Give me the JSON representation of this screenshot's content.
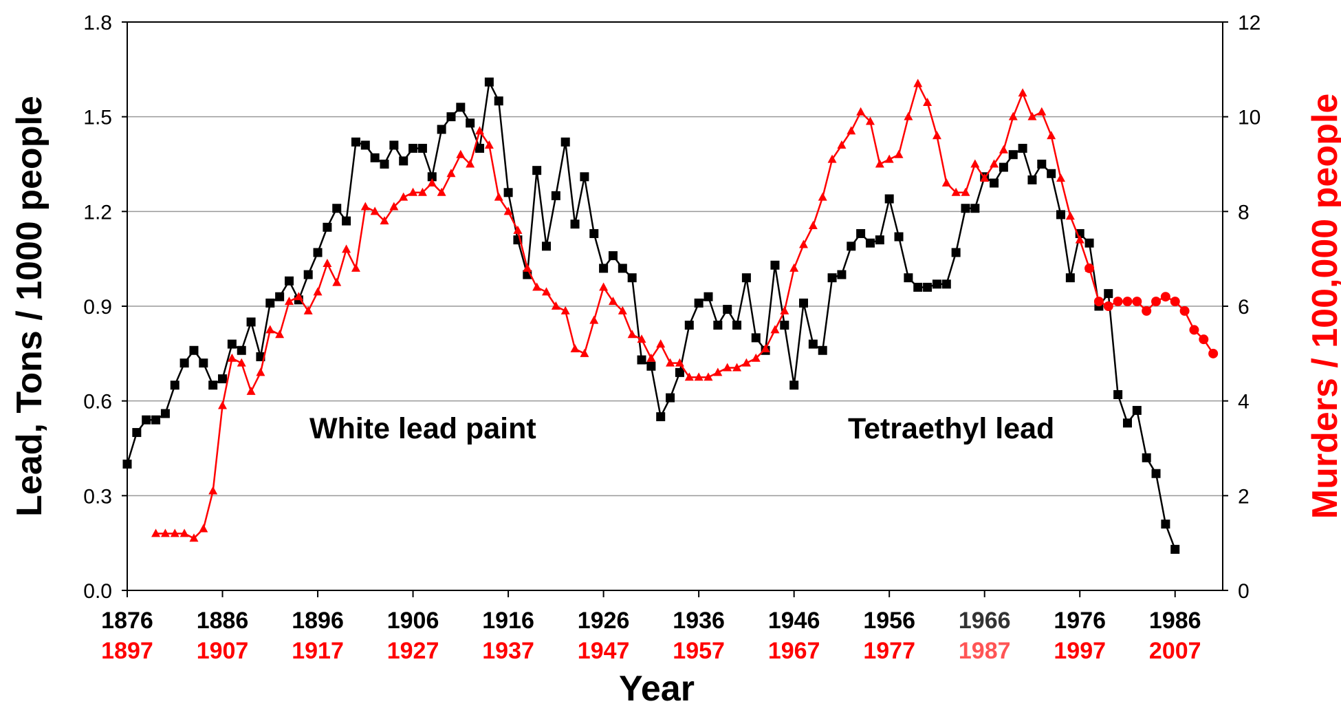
{
  "chart_data": {
    "type": "line",
    "xlabel": "Year",
    "ylabel_left": "Lead, Tons / 1000 people",
    "ylabel_right": "Murders / 100,000 people",
    "x_range": [
      1876,
      1991
    ],
    "ylim_left": [
      0.0,
      1.8
    ],
    "ylim_right": [
      0,
      12
    ],
    "yticks_left": [
      "0.0",
      "0.3",
      "0.6",
      "0.9",
      "1.2",
      "1.5",
      "1.8"
    ],
    "yticks_right": [
      "0",
      "2",
      "4",
      "6",
      "8",
      "10",
      "12"
    ],
    "xticks_primary": [
      "1876",
      "1886",
      "1896",
      "1906",
      "1916",
      "1926",
      "1936",
      "1946",
      "1956",
      "1966",
      "1976",
      "1986"
    ],
    "xticks_secondary": [
      "1897",
      "1907",
      "1917",
      "1927",
      "1937",
      "1947",
      "1957",
      "1967",
      "1977",
      "1987",
      "1997",
      "2007"
    ],
    "grid": true,
    "annotations": [
      {
        "text": "White lead paint",
        "x": 1903,
        "y": 0.5
      },
      {
        "text": "Tetraethyl lead",
        "x": 1964,
        "y": 0.5
      }
    ],
    "colors": {
      "lead": "#000000",
      "murders": "#ff0000",
      "tick_secondary": "#ff0000",
      "tick_secondary_special": "#ff5555",
      "tick_primary_special": "#333333",
      "grid": "#999999"
    },
    "series": [
      {
        "axis": "left",
        "marker": "square",
        "x": [
          1876,
          1877,
          1878,
          1879,
          1880,
          1881,
          1882,
          1883,
          1884,
          1885,
          1886,
          1887,
          1888,
          1889,
          1890,
          1891,
          1892,
          1893,
          1894,
          1895,
          1896,
          1897,
          1898,
          1899,
          1900,
          1901,
          1902,
          1903,
          1904,
          1905,
          1906,
          1907,
          1908,
          1909,
          1910,
          1911,
          1912,
          1913,
          1914,
          1915,
          1916,
          1917,
          1918,
          1919,
          1920,
          1921,
          1922,
          1923,
          1924,
          1925,
          1926,
          1927,
          1928,
          1929,
          1930,
          1931,
          1932,
          1933,
          1934,
          1935,
          1936,
          1937,
          1938,
          1939,
          1940,
          1941,
          1942,
          1943,
          1944,
          1945,
          1946,
          1947,
          1948,
          1949,
          1950,
          1951,
          1952,
          1953,
          1954,
          1955,
          1956,
          1957,
          1958,
          1959,
          1960,
          1961,
          1962,
          1963,
          1964,
          1965,
          1966,
          1967,
          1968,
          1969,
          1970,
          1971,
          1972,
          1973,
          1974,
          1975,
          1976,
          1977,
          1978,
          1979,
          1980,
          1981,
          1982,
          1983,
          1984,
          1985,
          1986
        ],
        "values": [
          0.4,
          0.5,
          0.54,
          0.54,
          0.56,
          0.65,
          0.72,
          0.76,
          0.72,
          0.65,
          0.67,
          0.78,
          0.76,
          0.85,
          0.74,
          0.91,
          0.93,
          0.98,
          0.92,
          1.0,
          1.07,
          1.15,
          1.21,
          1.17,
          1.42,
          1.41,
          1.37,
          1.35,
          1.41,
          1.36,
          1.4,
          1.4,
          1.31,
          1.46,
          1.5,
          1.53,
          1.48,
          1.4,
          1.61,
          1.55,
          1.26,
          1.11,
          1.0,
          1.33,
          1.09,
          1.25,
          1.42,
          1.16,
          1.31,
          1.13,
          1.02,
          1.06,
          1.02,
          0.99,
          0.73,
          0.71,
          0.55,
          0.61,
          0.69,
          0.84,
          0.91,
          0.93,
          0.84,
          0.89,
          0.84,
          0.99,
          0.8,
          0.76,
          1.03,
          0.84,
          0.65,
          0.91,
          0.78,
          0.76,
          0.99,
          1.0,
          1.09,
          1.13,
          1.1,
          1.11,
          1.24,
          1.12,
          0.99,
          0.96,
          0.96,
          0.97,
          0.97,
          1.07,
          1.21,
          1.21,
          1.31,
          1.29,
          1.34,
          1.38,
          1.4,
          1.3,
          1.35,
          1.32,
          1.19,
          0.99,
          1.13,
          1.1,
          0.9,
          0.94,
          0.62,
          0.53,
          0.57,
          0.42,
          0.37,
          0.21,
          0.13
        ]
      },
      {
        "axis": "right",
        "marker": "triangle",
        "x": [
          1879,
          1880,
          1881,
          1882,
          1883,
          1884,
          1885,
          1886,
          1887,
          1888,
          1889,
          1890,
          1891,
          1892,
          1893,
          1894,
          1895,
          1896,
          1897,
          1898,
          1899,
          1900,
          1901,
          1902,
          1903,
          1904,
          1905,
          1906,
          1907,
          1908,
          1909,
          1910,
          1911,
          1912,
          1913,
          1914,
          1915,
          1916,
          1917,
          1918,
          1919,
          1920,
          1921,
          1922,
          1923,
          1924,
          1925,
          1926,
          1927,
          1928,
          1929,
          1930,
          1931,
          1932,
          1933,
          1934,
          1935,
          1936,
          1937,
          1938,
          1939,
          1940,
          1941,
          1942,
          1943,
          1944,
          1945,
          1946,
          1947,
          1948,
          1949,
          1950,
          1951,
          1952,
          1953,
          1954,
          1955,
          1956,
          1957,
          1958,
          1959,
          1960,
          1961,
          1962,
          1963,
          1964,
          1965,
          1966,
          1967,
          1968,
          1969,
          1970,
          1971,
          1972,
          1973,
          1974,
          1975,
          1976,
          1977
        ],
        "values": [
          1.2,
          1.2,
          1.2,
          1.2,
          1.1,
          1.3,
          2.1,
          3.9,
          4.9,
          4.8,
          4.2,
          4.6,
          5.5,
          5.4,
          6.1,
          6.2,
          5.9,
          6.3,
          6.9,
          6.5,
          7.2,
          6.8,
          8.1,
          8.0,
          7.8,
          8.1,
          8.3,
          8.4,
          8.4,
          8.6,
          8.4,
          8.8,
          9.2,
          9.0,
          9.7,
          9.4,
          8.3,
          8.0,
          7.6,
          6.8,
          6.4,
          6.3,
          6.0,
          5.9,
          5.1,
          5.0,
          5.7,
          6.4,
          6.1,
          5.9,
          5.4,
          5.3,
          4.9,
          5.2,
          4.8,
          4.8,
          4.5,
          4.5,
          4.5,
          4.6,
          4.7,
          4.7,
          4.8,
          4.9,
          5.1,
          5.5,
          5.9,
          6.8,
          7.3,
          7.7,
          8.3,
          9.1,
          9.4,
          9.7,
          10.1,
          9.9,
          9.0,
          9.1,
          9.2,
          10.0,
          10.7,
          10.3,
          9.6,
          8.6,
          8.4,
          8.4,
          9.0,
          8.7,
          9.0,
          9.3,
          10.0,
          10.5,
          10.0,
          10.1,
          9.6,
          8.7,
          7.9,
          7.4,
          6.8
        ]
      },
      {
        "axis": "right",
        "marker": "circle",
        "x": [
          1977,
          1978,
          1979,
          1980,
          1981,
          1982,
          1983,
          1984,
          1985,
          1986,
          1987,
          1988,
          1989,
          1990
        ],
        "values": [
          6.8,
          6.1,
          6.0,
          6.1,
          6.1,
          6.1,
          5.9,
          6.1,
          6.2,
          6.1,
          5.9,
          5.5,
          5.3,
          5.0
        ]
      }
    ]
  }
}
